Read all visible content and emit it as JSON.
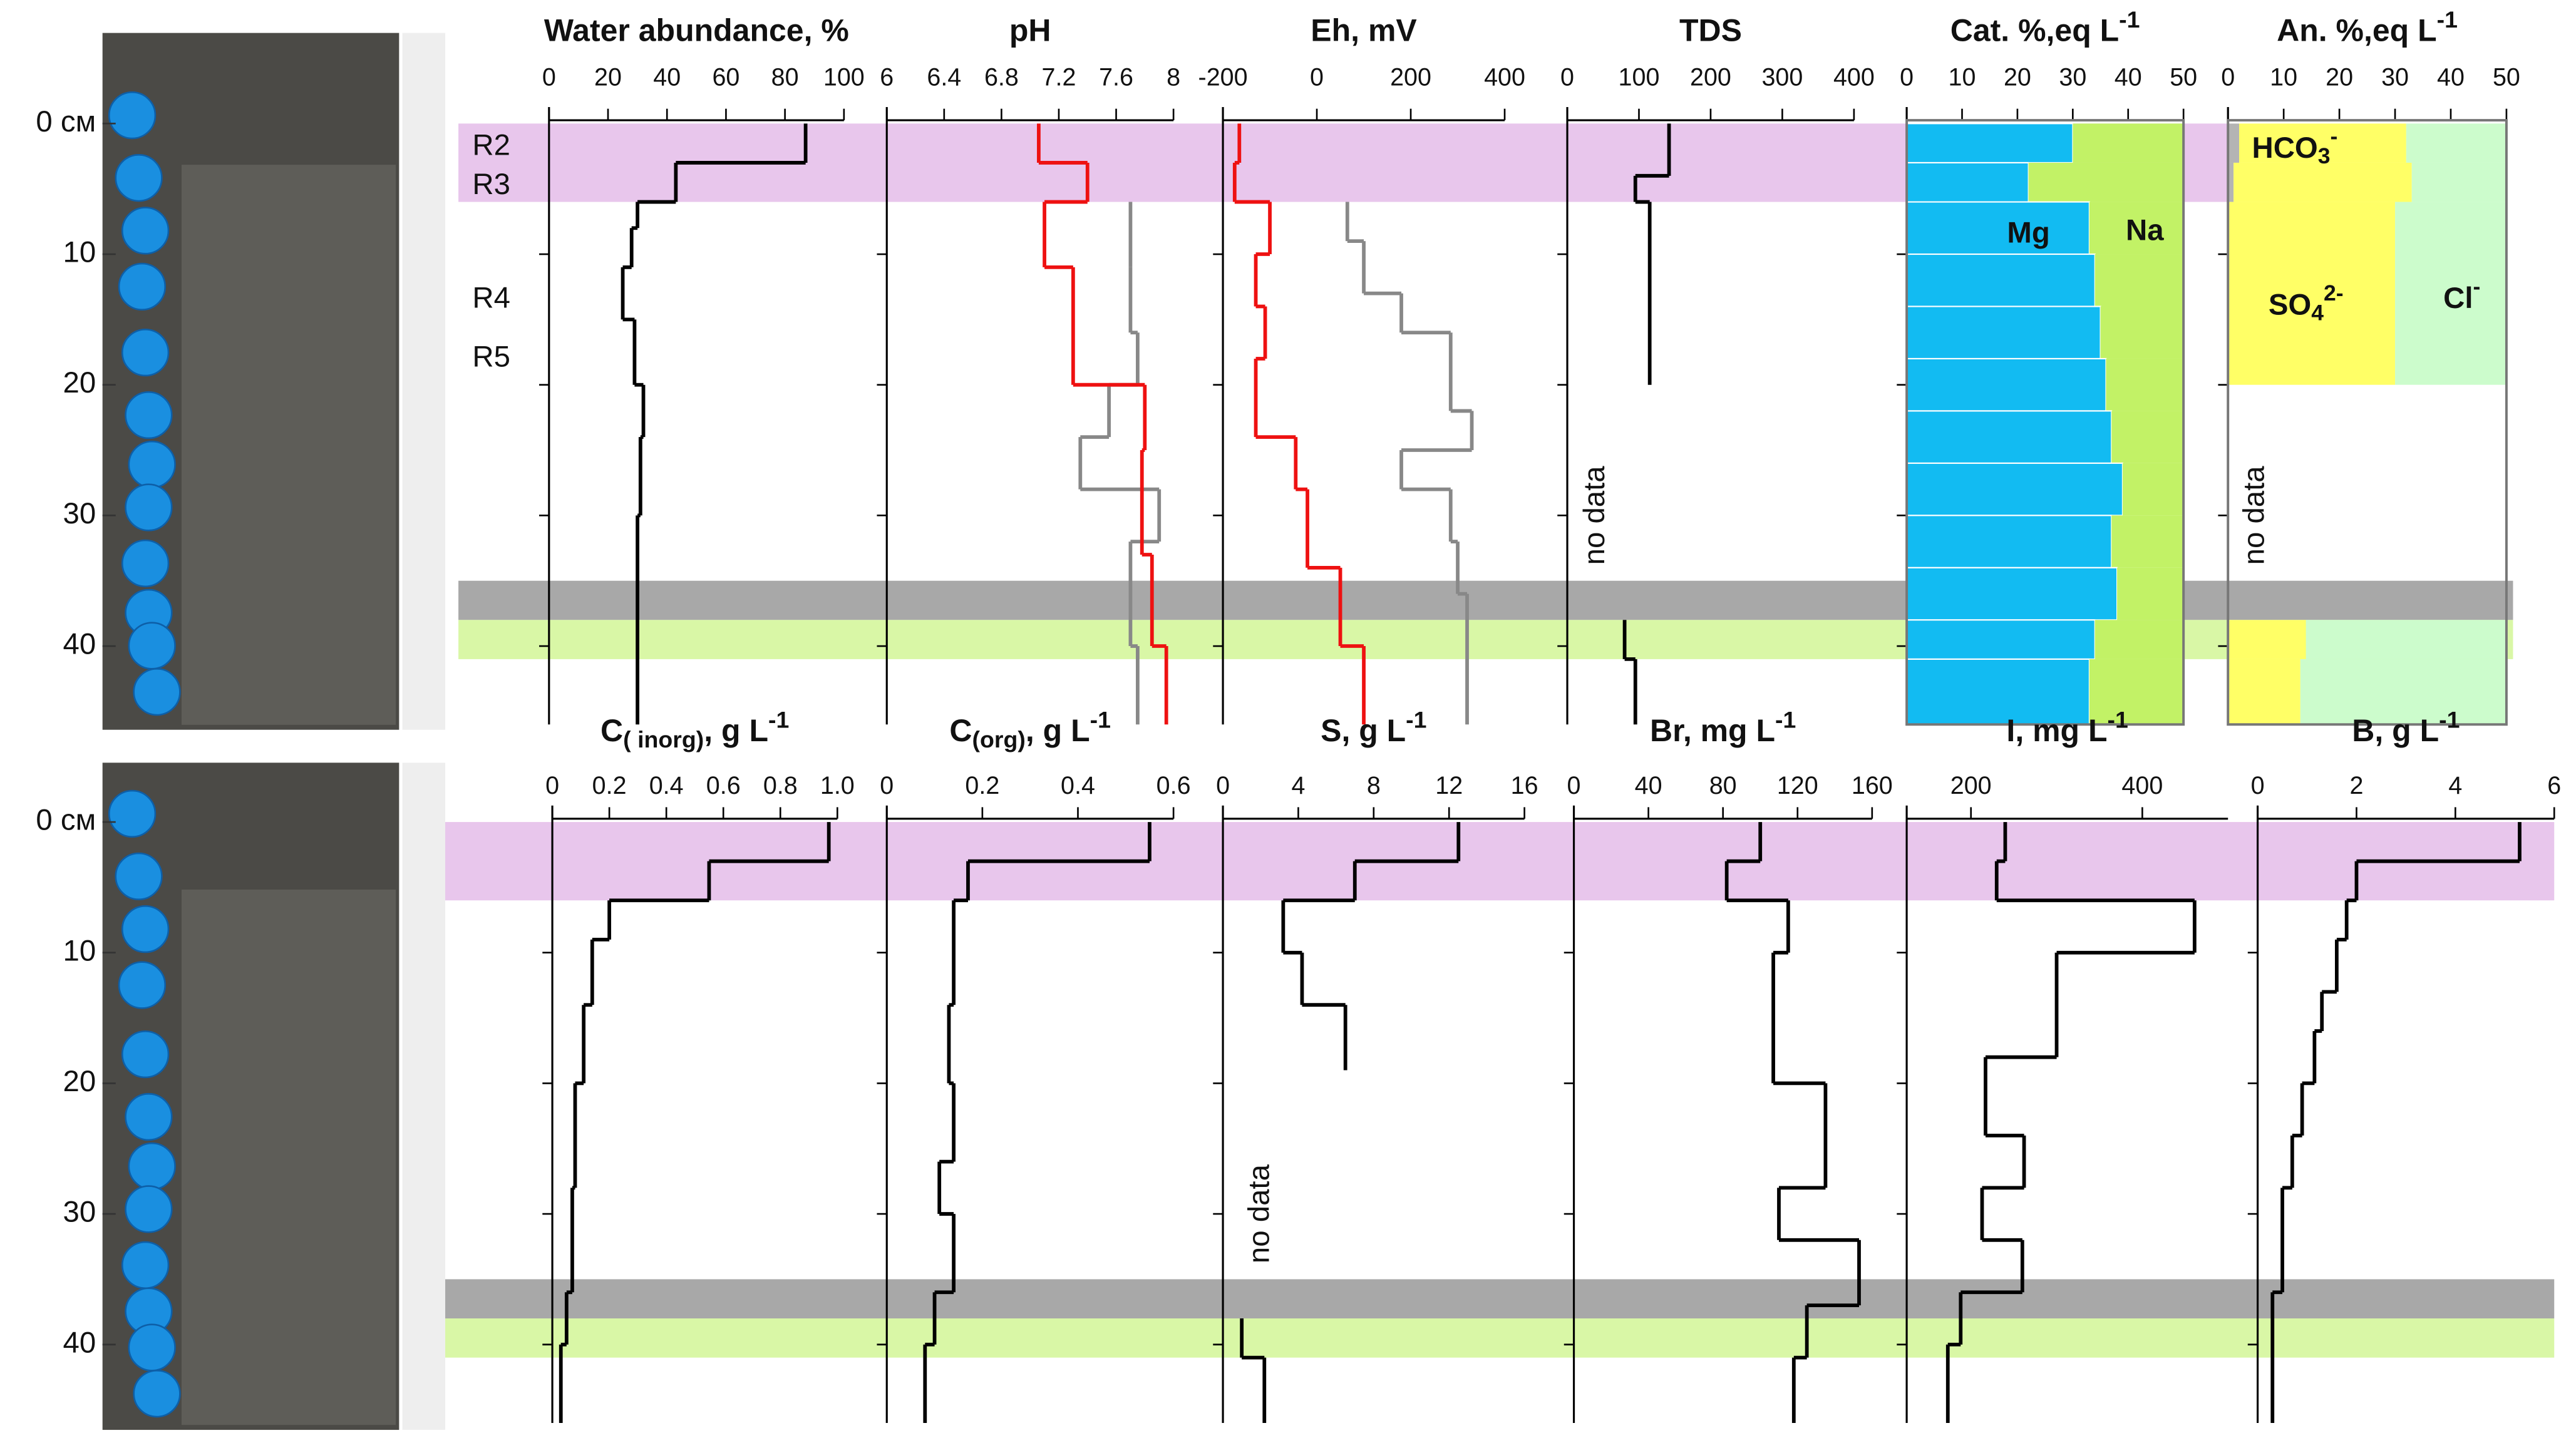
{
  "depth_axis": {
    "ylim": [
      0,
      46
    ],
    "yticks": [
      {
        "value": 0,
        "label": "0 см"
      },
      10,
      20,
      30,
      40
    ]
  },
  "bands": [
    {
      "from": 0,
      "to": 6,
      "color": "#e8c6ec"
    },
    {
      "from": 35,
      "to": 38,
      "color": "#a8a8a8"
    },
    {
      "from": 38,
      "to": 41,
      "color": "#d9f7a6"
    }
  ],
  "layers": [
    {
      "label": "R2",
      "depth": 1.8
    },
    {
      "label": "R3",
      "depth": 4.8
    },
    {
      "label": "R4",
      "depth": 13.5
    },
    {
      "label": "R5",
      "depth": 18
    }
  ],
  "chart_data": [
    {
      "type": "step",
      "title": [
        {
          "t": "Water abundance, %"
        }
      ],
      "xlim": [
        0,
        100
      ],
      "xticks": [
        0,
        20,
        40,
        60,
        80,
        100
      ],
      "series": [
        {
          "color": "#000000",
          "bins": [
            0,
            3,
            6,
            8,
            11,
            15,
            20,
            24,
            30,
            46
          ],
          "values": [
            87,
            43,
            30,
            28,
            25,
            29,
            32,
            31,
            30
          ]
        }
      ]
    },
    {
      "type": "step",
      "title": [
        {
          "t": "pH"
        }
      ],
      "xlim": [
        6,
        8
      ],
      "xticks": [
        6,
        6.4,
        6.8,
        7.2,
        7.6,
        8
      ],
      "series": [
        {
          "color": "#888888",
          "bins": [
            6,
            11,
            16,
            20,
            24,
            28,
            32,
            40,
            46
          ],
          "values": [
            7.7,
            7.7,
            7.75,
            7.55,
            7.35,
            7.9,
            7.7,
            7.75
          ]
        },
        {
          "color": "#ee1111",
          "bins": [
            0,
            3,
            6,
            11,
            20,
            25,
            33,
            40,
            46
          ],
          "values": [
            7.06,
            7.4,
            7.1,
            7.3,
            7.8,
            7.78,
            7.85,
            7.95
          ]
        }
      ]
    },
    {
      "type": "step",
      "title": [
        {
          "t": "Eh, mV"
        }
      ],
      "xlim": [
        -200,
        400
      ],
      "xticks": [
        -200,
        0,
        200,
        400
      ],
      "series": [
        {
          "color": "#888888",
          "bins": [
            6,
            9,
            13,
            16,
            22,
            25,
            28,
            32,
            36,
            46
          ],
          "values": [
            65,
            100,
            180,
            285,
            330,
            180,
            285,
            300,
            320
          ]
        },
        {
          "color": "#ee1111",
          "bins": [
            0,
            3,
            6,
            10,
            14,
            18,
            24,
            28,
            34,
            40,
            46
          ],
          "values": [
            -165,
            -175,
            -100,
            -130,
            -110,
            -130,
            -45,
            -20,
            50,
            100
          ]
        }
      ]
    },
    {
      "type": "step",
      "title": [
        {
          "t": "TDS"
        }
      ],
      "xlim": [
        0,
        400
      ],
      "xticks": [
        0,
        100,
        200,
        300,
        400
      ],
      "series": [
        {
          "color": "#000000",
          "bins": [
            0,
            4,
            6,
            20,
            38,
            41,
            46
          ],
          "values": [
            142,
            95,
            115,
            null,
            80,
            95
          ]
        }
      ],
      "annotations": [
        {
          "text": [
            {
              "t": "no data"
            }
          ],
          "x": 40,
          "depth": 30,
          "rotate": true
        }
      ]
    },
    {
      "type": "stacked_step",
      "title": [
        {
          "t": "Cat. %,eq L"
        },
        {
          "t": "-1",
          "sup": true
        }
      ],
      "xlim": [
        0,
        50
      ],
      "xticks": [
        0,
        10,
        20,
        30,
        40,
        50
      ],
      "series": [
        {
          "name": "Mg",
          "color": "#12bbf2",
          "bins": [
            0,
            3,
            6,
            10,
            14,
            18,
            22,
            26,
            30,
            34,
            38,
            41,
            46
          ],
          "values": [
            30,
            22,
            33,
            34,
            35,
            36,
            37,
            39,
            37,
            38,
            34,
            33
          ]
        },
        {
          "name": "Na",
          "color": "#c2f266",
          "bins": [
            0,
            3,
            6,
            10,
            14,
            18,
            22,
            26,
            30,
            34,
            38,
            41,
            46
          ],
          "values": [
            20,
            28,
            17,
            16,
            15,
            14,
            13,
            11,
            13,
            12,
            16,
            17
          ]
        }
      ],
      "annotations": [
        {
          "text": [
            {
              "t": "Mg"
            }
          ],
          "x": 22,
          "depth": 8.5
        },
        {
          "text": [
            {
              "t": "Na"
            }
          ],
          "x": 43,
          "depth": 8.3
        }
      ]
    },
    {
      "type": "stacked_step",
      "title": [
        {
          "t": "An. %,eq L"
        },
        {
          "t": "-1",
          "sup": true
        }
      ],
      "xlim": [
        0,
        50
      ],
      "xticks": [
        0,
        10,
        20,
        30,
        40,
        50
      ],
      "series": [
        {
          "color": "#b4b4b4",
          "bins": [
            0,
            3,
            6,
            20,
            38,
            41,
            46
          ],
          "values": [
            2,
            1,
            0,
            null,
            0,
            0
          ]
        },
        {
          "color": "#ffff66",
          "bins": [
            0,
            3,
            6,
            20,
            38,
            41,
            46
          ],
          "values": [
            30,
            32,
            30,
            null,
            14,
            13
          ]
        },
        {
          "color": "#ccfccc",
          "bins": [
            0,
            3,
            6,
            20,
            38,
            41,
            46
          ],
          "values": [
            18,
            17,
            20,
            null,
            36,
            37
          ]
        }
      ],
      "annotations": [
        {
          "text": [
            {
              "t": "HCO"
            },
            {
              "t": "3",
              "sub": true
            },
            {
              "t": "-",
              "sup": true
            }
          ],
          "x": 12,
          "depth": 2
        },
        {
          "text": [
            {
              "t": "SO"
            },
            {
              "t": "4",
              "sub": true
            },
            {
              "t": "2-",
              "sup": true
            }
          ],
          "x": 14,
          "depth": 14
        },
        {
          "text": [
            {
              "t": "Cl"
            },
            {
              "t": "-",
              "sup": true
            }
          ],
          "x": 42,
          "depth": 13.5
        },
        {
          "text": [
            {
              "t": "no data"
            }
          ],
          "x": 5,
          "depth": 30,
          "rotate": true
        }
      ]
    },
    {
      "type": "step",
      "title": [
        {
          "t": "C"
        },
        {
          "t": "( inorg)",
          "sub": true
        },
        {
          "t": ", g L"
        },
        {
          "t": "-1",
          "sup": true
        }
      ],
      "xlim": [
        0,
        1
      ],
      "xticks": [
        0,
        0.2,
        0.4,
        0.6,
        0.8,
        {
          "value": 1,
          "label": "1.0"
        }
      ],
      "series": [
        {
          "color": "#000000",
          "bins": [
            0,
            3,
            6,
            9,
            14,
            20,
            28,
            36,
            40,
            46
          ],
          "values": [
            0.97,
            0.55,
            0.2,
            0.14,
            0.11,
            0.08,
            0.07,
            0.05,
            0.03
          ]
        }
      ]
    },
    {
      "type": "step",
      "title": [
        {
          "t": "C"
        },
        {
          "t": "(org)",
          "sub": true
        },
        {
          "t": ", g L"
        },
        {
          "t": "-1",
          "sup": true
        }
      ],
      "xlim": [
        0,
        0.6
      ],
      "xticks": [
        0,
        0.2,
        0.4,
        0.6
      ],
      "series": [
        {
          "color": "#000000",
          "bins": [
            0,
            3,
            6,
            14,
            20,
            26,
            30,
            36,
            40,
            46
          ],
          "values": [
            0.55,
            0.17,
            0.14,
            0.13,
            0.14,
            0.11,
            0.14,
            0.1,
            0.08
          ]
        }
      ]
    },
    {
      "type": "step",
      "title": [
        {
          "t": "S, g L"
        },
        {
          "t": "-1",
          "sup": true
        }
      ],
      "xlim": [
        0,
        16
      ],
      "xticks": [
        0,
        4,
        8,
        12,
        16
      ],
      "series": [
        {
          "color": "#000000",
          "bins": [
            0,
            3,
            6,
            10,
            14,
            19,
            38,
            41,
            46
          ],
          "values": [
            12.5,
            7,
            3.2,
            4.2,
            6.5,
            null,
            1,
            2.2
          ]
        }
      ],
      "annotations": [
        {
          "text": [
            {
              "t": "no data"
            }
          ],
          "x": 2,
          "depth": 30,
          "rotate": true
        }
      ]
    },
    {
      "type": "step",
      "title": [
        {
          "t": "Br, mg L"
        },
        {
          "t": "-1",
          "sup": true
        }
      ],
      "xlim": [
        0,
        160
      ],
      "xticks": [
        0,
        40,
        80,
        120,
        160
      ],
      "series": [
        {
          "color": "#000000",
          "bins": [
            0,
            3,
            6,
            10,
            20,
            28,
            32,
            37,
            41,
            46
          ],
          "values": [
            100,
            82,
            115,
            107,
            135,
            110,
            153,
            125,
            118
          ]
        }
      ]
    },
    {
      "type": "step",
      "title": [
        {
          "t": "I, mg L"
        },
        {
          "t": "-1",
          "sup": true
        }
      ],
      "xlim": [
        125,
        500
      ],
      "xticks": [
        200,
        400
      ],
      "series": [
        {
          "color": "#000000",
          "bins": [
            0,
            3,
            6,
            10,
            18,
            24,
            28,
            32,
            36,
            40,
            46
          ],
          "values": [
            240,
            230,
            461,
            300,
            217,
            262,
            213,
            260,
            188,
            173
          ]
        }
      ]
    },
    {
      "type": "step",
      "title": [
        {
          "t": "B, g L"
        },
        {
          "t": "-1",
          "sup": true
        }
      ],
      "xlim": [
        0,
        6
      ],
      "xticks": [
        0,
        2,
        4,
        6
      ],
      "series": [
        {
          "color": "#000000",
          "bins": [
            0,
            3,
            6,
            9,
            13,
            16,
            20,
            24,
            28,
            36,
            46
          ],
          "values": [
            5.3,
            2.0,
            1.8,
            1.6,
            1.3,
            1.15,
            0.9,
            0.7,
            0.5,
            0.3
          ]
        }
      ]
    }
  ]
}
